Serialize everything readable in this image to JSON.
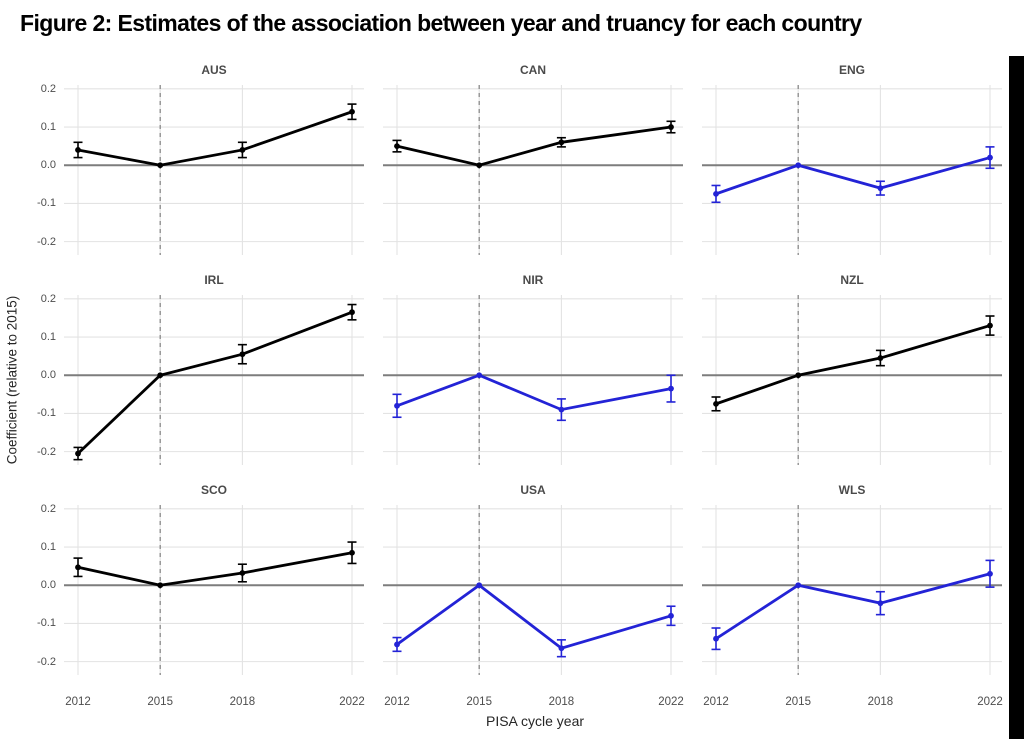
{
  "title": "Figure 2: Estimates of the association between year and truancy for each country",
  "chart_data": {
    "type": "line",
    "layout": "3x3 facet grid with pointrange (error bar) series per country",
    "xlabel": "PISA cycle year",
    "ylabel": "Coefficient (relative to 2015)",
    "x": [
      2012,
      2015,
      2018,
      2022
    ],
    "x_tick_labels": [
      "2012",
      "2015",
      "2018",
      "2022"
    ],
    "y_tick_labels": [
      "0.2",
      "0.1",
      "0.0",
      "-0.1",
      "-0.2"
    ],
    "ylim": [
      -0.235,
      0.21
    ],
    "reference_hline_y": 0,
    "reference_vline_x": 2015,
    "grid": "major gridlines only, light gray, no panel border",
    "legend": "none",
    "colors": {
      "black_series": "#000000",
      "blue_series": "#2323d6",
      "gridline": "#e3e3e3",
      "zero_line": "#7d7d7d",
      "dashed_line": "#8a8a8a"
    },
    "panels": [
      {
        "label": "AUS",
        "color_key": "black_series",
        "values": [
          0.04,
          0.0,
          0.04,
          0.14
        ],
        "ci_halfwidth": [
          0.02,
          0,
          0.02,
          0.02
        ]
      },
      {
        "label": "CAN",
        "color_key": "black_series",
        "values": [
          0.05,
          0.0,
          0.06,
          0.1
        ],
        "ci_halfwidth": [
          0.015,
          0,
          0.012,
          0.015
        ]
      },
      {
        "label": "ENG",
        "color_key": "blue_series",
        "values": [
          -0.075,
          0.0,
          -0.06,
          0.02
        ],
        "ci_halfwidth": [
          0.022,
          0,
          0.018,
          0.028
        ]
      },
      {
        "label": "IRL",
        "color_key": "black_series",
        "values": [
          -0.205,
          0.0,
          0.055,
          0.165
        ],
        "ci_halfwidth": [
          0.016,
          0,
          0.025,
          0.02
        ]
      },
      {
        "label": "NIR",
        "color_key": "blue_series",
        "values": [
          -0.08,
          0.0,
          -0.09,
          -0.035
        ],
        "ci_halfwidth": [
          0.03,
          0,
          0.028,
          0.035
        ]
      },
      {
        "label": "NZL",
        "color_key": "black_series",
        "values": [
          -0.075,
          0.0,
          0.045,
          0.13
        ],
        "ci_halfwidth": [
          0.018,
          0,
          0.02,
          0.025
        ]
      },
      {
        "label": "SCO",
        "color_key": "black_series",
        "values": [
          0.047,
          0.0,
          0.032,
          0.085
        ],
        "ci_halfwidth": [
          0.024,
          0,
          0.023,
          0.028
        ]
      },
      {
        "label": "USA",
        "color_key": "blue_series",
        "values": [
          -0.155,
          0.0,
          -0.165,
          -0.08
        ],
        "ci_halfwidth": [
          0.018,
          0,
          0.022,
          0.025
        ]
      },
      {
        "label": "WLS",
        "color_key": "blue_series",
        "values": [
          -0.14,
          0.0,
          -0.047,
          0.03
        ],
        "ci_halfwidth": [
          0.028,
          0,
          0.03,
          0.035
        ]
      }
    ]
  }
}
